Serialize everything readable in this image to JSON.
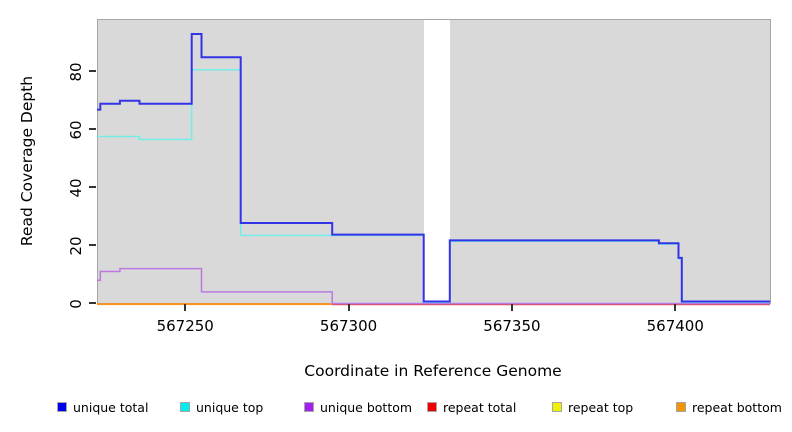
{
  "figure": {
    "xlabel": "Coordinate in Reference Genome",
    "ylabel": "Read Coverage Depth"
  },
  "chart_data": {
    "type": "line",
    "subtype": "step",
    "title": "",
    "xlabel": "Coordinate in Reference Genome",
    "ylabel": "Read Coverage Depth",
    "xlim": [
      567223,
      567429
    ],
    "ylim": [
      0,
      97
    ],
    "x_ticks": [
      567250,
      567300,
      567350,
      567400
    ],
    "y_ticks": [
      0,
      20,
      40,
      60,
      80
    ],
    "grid": false,
    "legend_position": "bottom",
    "panel_background": "#d9d9d9",
    "no_data_gap_x": [
      567323,
      567331
    ],
    "series": [
      {
        "name": "unique-total",
        "legend_label": "unique total",
        "color": "#0000ee",
        "line_color": "#3333e8",
        "line_width": 2,
        "z": 5,
        "visible": true,
        "points": [
          [
            567223,
            66
          ],
          [
            567224,
            68
          ],
          [
            567230,
            69
          ],
          [
            567236,
            68
          ],
          [
            567252,
            92
          ],
          [
            567255,
            84
          ],
          [
            567267,
            27
          ],
          [
            567295,
            23
          ],
          [
            567323,
            0
          ],
          [
            567331,
            21
          ],
          [
            567395,
            20
          ],
          [
            567401,
            15
          ],
          [
            567402,
            0
          ],
          [
            567429,
            0
          ]
        ]
      },
      {
        "name": "unique-top",
        "legend_label": "unique top",
        "color": "#00eeee",
        "line_color": "#74ece8",
        "line_width": 1.5,
        "z": 4,
        "visible": true,
        "points": [
          [
            567223,
            57
          ],
          [
            567236,
            56
          ],
          [
            567252,
            80
          ],
          [
            567267,
            23
          ],
          [
            567323,
            0
          ],
          [
            567331,
            21
          ],
          [
            567395,
            20
          ],
          [
            567401,
            15
          ],
          [
            567402,
            0
          ],
          [
            567429,
            0
          ]
        ]
      },
      {
        "name": "unique-bottom",
        "legend_label": "unique bottom",
        "color": "#a020f0",
        "line_color": "#bb79e2",
        "line_width": 1.5,
        "z": 3,
        "visible": true,
        "points": [
          [
            567223,
            8
          ],
          [
            567224,
            11
          ],
          [
            567230,
            12
          ],
          [
            567255,
            4
          ],
          [
            567295,
            0
          ],
          [
            567429,
            0
          ]
        ]
      },
      {
        "name": "repeat-total",
        "legend_label": "repeat total",
        "color": "#ee0000",
        "line_color": "#e04858",
        "line_width": 1.5,
        "z": 2,
        "visible": true,
        "points": [
          [
            567295,
            0
          ],
          [
            567429,
            0
          ]
        ]
      },
      {
        "name": "repeat-top",
        "legend_label": "repeat top",
        "color": "#f0f000",
        "line_color": "#f0f000",
        "line_width": 1.5,
        "z": 0,
        "visible": false,
        "points": []
      },
      {
        "name": "repeat-bottom",
        "legend_label": "repeat bottom",
        "color": "#f29400",
        "line_color": "#fc9220",
        "line_width": 2,
        "z": 1,
        "visible": true,
        "points": [
          [
            567223,
            0
          ],
          [
            567295,
            0
          ]
        ]
      }
    ]
  }
}
